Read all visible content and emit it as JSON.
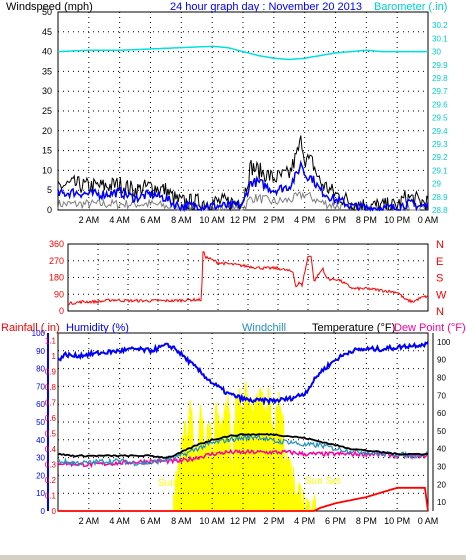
{
  "chart_data": [
    {
      "type": "line",
      "title": "24 hour graph day : November 20 2013",
      "ylabel_left": "Windspeed (mph)",
      "ylabel_right": "Barometer (.in)",
      "xticks": [
        "2 AM",
        "4 AM",
        "6 AM",
        "8 AM",
        "10 AM",
        "12 PM",
        "2 PM",
        "4 PM",
        "6 PM",
        "8 PM",
        "10 PM",
        "0 AM"
      ],
      "xlim_hours": [
        0,
        24
      ],
      "ylim_left": [
        0,
        50
      ],
      "yticks_left": [
        "0",
        "5",
        "10",
        "15",
        "20",
        "25",
        "30",
        "35",
        "40",
        "45",
        "50"
      ],
      "ylim_right": [
        28.8,
        30.3
      ],
      "yticks_right": [
        "28.8",
        "28.9",
        "29",
        "29.1",
        "29.2",
        "29.3",
        "29.4",
        "29.5",
        "29.6",
        "29.7",
        "29.8",
        "29.9",
        "30",
        "30.1",
        "30.2"
      ],
      "colors": {
        "gust": "#000000",
        "avg": "#0000ff",
        "low": "#808080",
        "barometer": "#00e0e0"
      },
      "series": [
        {
          "key": "gust",
          "x": [
            0,
            1,
            2,
            3,
            4,
            5,
            6,
            7,
            7.5,
            8,
            9,
            10,
            11,
            11.5,
            12,
            12.5,
            13,
            14,
            15,
            15.5,
            15.8,
            16,
            16.5,
            17,
            18,
            18.5,
            19,
            20,
            21,
            22,
            22.5,
            23,
            23.5,
            24
          ],
          "values": [
            6,
            6.5,
            6,
            6,
            6.5,
            5,
            6,
            5,
            3,
            2,
            2,
            2,
            2,
            2,
            2.5,
            11,
            10,
            8,
            9,
            14,
            18,
            13,
            12,
            7,
            4,
            3,
            2,
            1,
            1,
            1,
            3,
            3,
            2,
            2
          ]
        },
        {
          "key": "avg",
          "x": [
            0,
            1,
            2,
            3,
            4,
            5,
            6,
            7,
            7.5,
            8,
            9,
            10,
            11,
            11.5,
            12,
            12.5,
            13,
            14,
            15,
            15.5,
            15.8,
            16,
            16.5,
            17,
            18,
            18.5,
            19,
            20,
            21,
            22,
            22.5,
            23,
            23.5,
            24
          ],
          "values": [
            4,
            4.5,
            4,
            4,
            4.5,
            3,
            4,
            3,
            1.5,
            1,
            1,
            1,
            1,
            1,
            1.5,
            7,
            7,
            5,
            6,
            9,
            12,
            9,
            8,
            5,
            2.5,
            2,
            1,
            0.5,
            0.5,
            0.5,
            1.5,
            1.5,
            1,
            1
          ]
        },
        {
          "key": "low",
          "x": [
            0,
            2,
            4,
            6,
            7,
            8,
            10,
            12,
            12.5,
            13,
            14,
            15,
            16,
            17,
            18,
            19,
            20,
            22,
            24
          ],
          "values": [
            1.5,
            1.5,
            1.5,
            1.5,
            1,
            0.3,
            0.3,
            0.3,
            3,
            3,
            2,
            2.5,
            4,
            2,
            1,
            0.3,
            0,
            0,
            0.2
          ]
        },
        {
          "key": "barometer",
          "x": [
            0,
            2,
            4,
            6,
            8,
            10,
            11,
            12,
            13,
            14,
            15,
            16,
            17,
            18,
            19,
            20,
            21,
            22,
            23,
            24
          ],
          "values": [
            30.0,
            30.01,
            30.01,
            30.02,
            30.03,
            30.04,
            30.03,
            30.0,
            29.97,
            29.95,
            29.94,
            29.95,
            29.97,
            29.99,
            30.0,
            30.01,
            30.0,
            30.0,
            30.0,
            30.0
          ]
        }
      ]
    },
    {
      "type": "scatter",
      "ylim": [
        0,
        360
      ],
      "yticks": [
        "0",
        "90",
        "180",
        "270",
        "360"
      ],
      "direction_labels": [
        "N",
        "W",
        "S",
        "E",
        "N"
      ],
      "xlim_hours": [
        0,
        24
      ],
      "colors": {
        "direction": "#ff0000",
        "labels": "#ff0000"
      },
      "series": [
        {
          "key": "direction",
          "x": [
            0,
            1,
            2,
            3,
            4,
            5,
            6,
            7,
            8,
            8.9,
            9.0,
            9.2,
            10,
            11,
            12,
            13,
            14,
            15,
            15.2,
            15.4,
            15.6,
            16,
            16.2,
            16.4,
            17,
            17.2,
            17.5,
            18,
            19,
            20,
            21,
            22,
            22.5,
            23,
            23.5,
            24
          ],
          "values": [
            40,
            50,
            50,
            60,
            55,
            55,
            55,
            55,
            60,
            60,
            320,
            290,
            260,
            250,
            240,
            230,
            230,
            210,
            130,
            150,
            140,
            290,
            300,
            160,
            230,
            180,
            170,
            170,
            120,
            120,
            110,
            100,
            60,
            50,
            70,
            80
          ]
        }
      ]
    },
    {
      "type": "line",
      "labels": {
        "rain": "Rainfall (.in)",
        "humidity": "Humidity (%)",
        "windchill": "Windchill",
        "temperature": "Temperature (°F)",
        "dewpoint": "Dew Point (°F)"
      },
      "xlim_hours": [
        0,
        24
      ],
      "yticks_humidity": [
        "0",
        "10",
        "20",
        "30",
        "40",
        "50",
        "60",
        "70",
        "80",
        "90",
        "100"
      ],
      "yticks_rain": [
        "0",
        "0.1",
        "0.2",
        "0.3",
        "0.4",
        "0.5",
        "0.6",
        "0.7",
        "0.8",
        "0.9",
        "1",
        "1.1"
      ],
      "yticks_temp": [
        "10",
        "20",
        "30",
        "40",
        "50",
        "60",
        "70",
        "80",
        "90",
        "100"
      ],
      "ylim_rain": [
        0,
        1.15
      ],
      "ylim_humidity": [
        0,
        100
      ],
      "ylim_temp": [
        5,
        105
      ],
      "annotations": {
        "sunrise": "Sun Rise",
        "sunset": "Sun Set"
      },
      "colors": {
        "humidity": "#0000ff",
        "temperature": "#000000",
        "windchill": "#2090c0",
        "dewpoint": "#ff00a0",
        "rain": "#ff0000",
        "solar": "#ffff00",
        "rain_label": "#ff0000",
        "humidity_label": "#0000ff",
        "windchill_label": "#2090c0",
        "temp_label": "#000000",
        "dew_label": "#ff00a0"
      },
      "series": [
        {
          "key": "humidity",
          "unit": "%",
          "x": [
            0,
            0.5,
            1,
            2,
            3,
            4,
            5,
            6,
            7,
            7.5,
            8,
            9,
            10,
            11,
            12,
            12.5,
            13,
            14,
            15,
            16,
            17,
            18,
            19,
            20,
            21,
            22,
            23,
            24
          ],
          "values": [
            85,
            88,
            87,
            88,
            89,
            90,
            91,
            90,
            93,
            92,
            88,
            80,
            72,
            66,
            63,
            62,
            62,
            62,
            63,
            66,
            78,
            85,
            90,
            91,
            91,
            92,
            93,
            94
          ]
        },
        {
          "key": "temperature",
          "unit": "F",
          "x": [
            0,
            1,
            2,
            3,
            4,
            5,
            6,
            7,
            7.5,
            8,
            9,
            10,
            11,
            12,
            13,
            14,
            15,
            16,
            17,
            18,
            19,
            20,
            21,
            22,
            23,
            24
          ],
          "values": [
            37,
            36,
            36,
            36,
            36,
            36,
            36,
            35,
            36,
            38,
            42,
            45,
            47,
            48,
            48,
            48,
            47,
            46,
            44,
            42,
            40,
            39,
            38,
            37,
            37,
            37
          ]
        },
        {
          "key": "windchill",
          "unit": "F",
          "x": [
            0,
            1,
            2,
            3,
            4,
            5,
            6,
            7,
            7.5,
            8,
            9,
            10,
            11,
            12,
            13,
            14,
            15,
            16,
            17,
            18,
            19,
            20,
            21,
            22,
            23,
            24
          ],
          "values": [
            33,
            32,
            32,
            33,
            33,
            32,
            32,
            34,
            35,
            36,
            40,
            43,
            45,
            46,
            47,
            44,
            44,
            42,
            42,
            40,
            39,
            38,
            37,
            37,
            36,
            37
          ]
        },
        {
          "key": "dewpoint",
          "unit": "F",
          "x": [
            0,
            2,
            4,
            6,
            7,
            8,
            9,
            10,
            11,
            12,
            13,
            14,
            15,
            16,
            17,
            18,
            19,
            20,
            21,
            22,
            23,
            24
          ],
          "values": [
            32,
            31,
            32,
            33,
            33,
            33,
            35,
            37,
            38,
            38,
            38,
            38,
            38,
            37,
            37,
            37,
            37,
            37,
            37,
            36,
            36,
            36
          ]
        },
        {
          "key": "rain",
          "unit": "in",
          "x": [
            0,
            16.6,
            17,
            18,
            19,
            20,
            21,
            22,
            23,
            23.9,
            24
          ],
          "values": [
            0,
            0,
            0.02,
            0.05,
            0.07,
            0.09,
            0.12,
            0.15,
            0.15,
            0.15,
            0
          ]
        },
        {
          "key": "solar",
          "unit": "%",
          "x": [
            7.5,
            7.7,
            8,
            8.3,
            8.6,
            9,
            9.3,
            9.5,
            9.7,
            10,
            10.3,
            10.6,
            11,
            11.3,
            11.6,
            12,
            12.3,
            12.6,
            13,
            13.3,
            13.6,
            14,
            14.4,
            14.8,
            15.2,
            15.6,
            16,
            16.3,
            16.6,
            16.7
          ],
          "values": [
            5,
            20,
            30,
            45,
            55,
            30,
            62,
            20,
            52,
            28,
            60,
            40,
            64,
            25,
            66,
            60,
            64,
            50,
            62,
            58,
            62,
            40,
            60,
            30,
            20,
            12,
            8,
            3,
            1,
            0
          ]
        }
      ]
    }
  ]
}
